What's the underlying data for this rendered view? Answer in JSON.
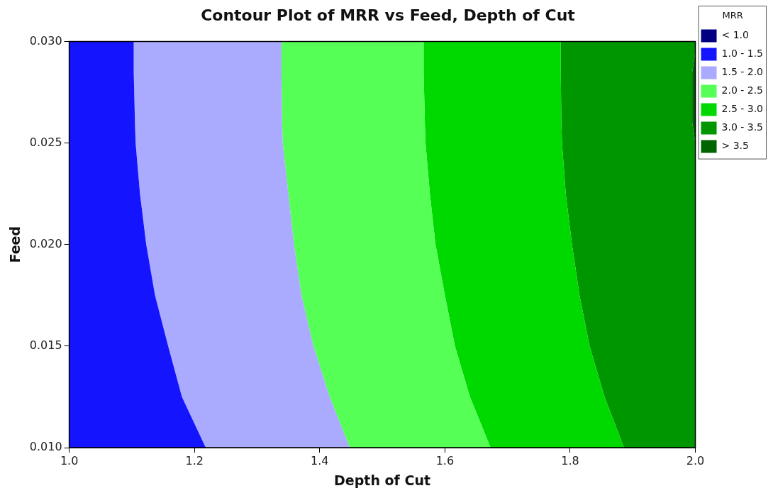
{
  "chart_data": {
    "type": "area",
    "orientation": "horizontal",
    "title": "Contour Plot of MRR vs Feed, Depth of Cut",
    "xlabel": "Depth of Cut",
    "ylabel": "Feed",
    "legend_title": "MRR",
    "legend": "top right",
    "x": [
      0.01,
      0.0125,
      0.015,
      0.0175,
      0.02,
      0.0225,
      0.025,
      0.026,
      0.0285,
      0.0295,
      0.03
    ],
    "series": [
      {
        "name": "< 1.0",
        "color": "#000080",
        "values": [
          null,
          null,
          null,
          null,
          null,
          null,
          null,
          null,
          null,
          null,
          null
        ]
      },
      {
        "name": "1.0 - 1.5",
        "color": "#1414ff",
        "values": [
          1.218,
          1.18,
          1.158,
          1.137,
          1.123,
          1.113,
          1.106,
          1.105,
          1.103,
          1.103,
          1.103
        ]
      },
      {
        "name": "1.5 - 2.0",
        "color": "#aaaaff",
        "values": [
          1.448,
          1.416,
          1.39,
          1.371,
          1.359,
          1.35,
          1.341,
          1.34,
          1.339,
          1.339,
          1.339
        ]
      },
      {
        "name": "2.0 - 2.5",
        "color": "#55ff55",
        "values": [
          1.673,
          1.64,
          1.616,
          1.6,
          1.585,
          1.576,
          1.569,
          1.568,
          1.566,
          1.566,
          1.566
        ]
      },
      {
        "name": "2.5 - 3.0",
        "color": "#00d900",
        "values": [
          1.886,
          1.855,
          1.831,
          1.815,
          1.803,
          1.793,
          1.787,
          1.786,
          1.785,
          1.785,
          1.785
        ]
      },
      {
        "name": "3.0 - 3.5",
        "color": "#009600",
        "values": [
          2.0,
          2.0,
          2.0,
          2.0,
          2.0,
          2.0,
          2.0,
          1.995,
          1.995,
          2.0,
          2.0
        ]
      },
      {
        "name": "> 3.5",
        "color": "#006400",
        "values": [
          2.0,
          2.0,
          2.0,
          2.0,
          2.0,
          2.0,
          2.0,
          2.0,
          2.0,
          2.0,
          2.0
        ]
      }
    ],
    "xlim": [
      1.0,
      2.0
    ],
    "xticks": [
      {
        "value": 1.0,
        "label": "1.0"
      },
      {
        "value": 1.2,
        "label": "1.2"
      },
      {
        "value": 1.4,
        "label": "1.4"
      },
      {
        "value": 1.6,
        "label": "1.6"
      },
      {
        "value": 1.8,
        "label": "1.8"
      },
      {
        "value": 2.0,
        "label": "2.0"
      }
    ],
    "ylim": [
      0.01,
      0.03
    ],
    "yticks": [
      {
        "value": 0.01,
        "label": "0.010"
      },
      {
        "value": 0.015,
        "label": "0.015"
      },
      {
        "value": 0.02,
        "label": "0.020"
      },
      {
        "value": 0.025,
        "label": "0.025"
      },
      {
        "value": 0.03,
        "label": "0.030"
      }
    ],
    "grid": false
  }
}
